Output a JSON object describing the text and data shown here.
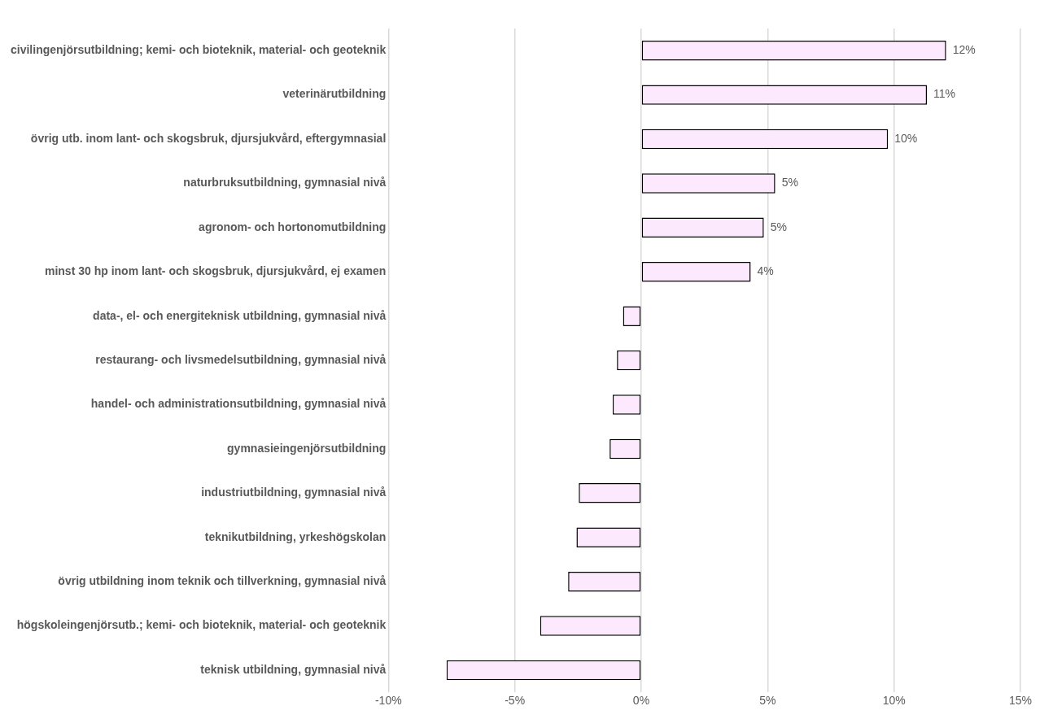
{
  "chart_data": {
    "type": "bar",
    "orientation": "horizontal",
    "categories": [
      "civilingenjörsutbildning; kemi- och bioteknik, material- och geoteknik",
      "veterinärutbildning",
      "övrig utb. inom lant- och skogsbruk, djursjukvård, eftergymnasial",
      "naturbruksutbildning, gymnasial nivå",
      "agronom- och hortonomutbildning",
      "minst 30 hp inom lant- och skogsbruk, djursjukvård, ej examen",
      "data-, el- och energiteknisk utbildning, gymnasial nivå",
      "restaurang- och livsmedelsutbildning, gymnasial nivå",
      "handel- och administrationsutbildning, gymnasial nivå",
      "gymnasieingenjörsutbildning",
      "industriutbildning, gymnasial nivå",
      "teknikutbildning, yrkeshögskolan",
      "övrig utbildning inom teknik och tillverkning, gymnasial nivå",
      "högskoleingenjörsutb.; kemi- och bioteknik, material- och geoteknik",
      "teknisk utbildning, gymnasial nivå"
    ],
    "values": [
      12.06,
      11.3,
      9.76,
      5.3,
      4.85,
      4.33,
      -0.72,
      -0.96,
      -1.13,
      -1.25,
      -2.47,
      -2.56,
      -2.89,
      -4.0,
      -7.7
    ],
    "value_labels": [
      "12%",
      "11%",
      "10%",
      "5%",
      "5%",
      "4%",
      null,
      null,
      null,
      null,
      null,
      null,
      null,
      null,
      null
    ],
    "color": "#fde9fd",
    "xlim": [
      -10,
      15
    ],
    "xticks": [
      {
        "value": -10,
        "label": "-10%"
      },
      {
        "value": -5,
        "label": "-5%"
      },
      {
        "value": 0,
        "label": "0%"
      },
      {
        "value": 5,
        "label": "5%"
      },
      {
        "value": 10,
        "label": "10%"
      },
      {
        "value": 15,
        "label": "15%"
      }
    ],
    "grid": "x"
  }
}
